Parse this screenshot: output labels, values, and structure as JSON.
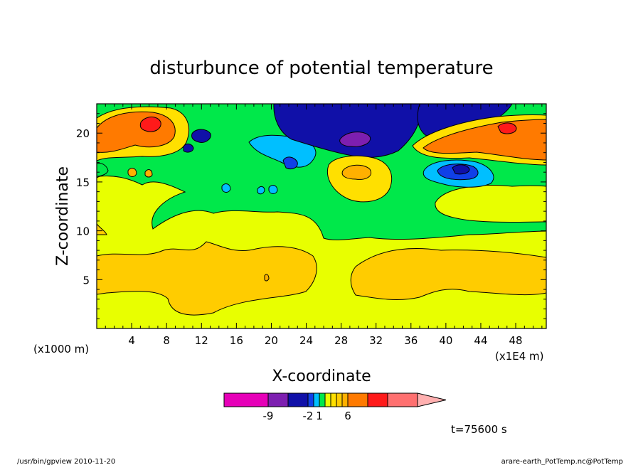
{
  "chart_data": {
    "type": "heatmap",
    "title": "disturbunce of potential temperature",
    "xlabel": "X-coordinate",
    "ylabel": "Z-coordinate",
    "x_unit": "(x1E4 m)",
    "y_unit": "(x1000 m)",
    "x_ticks": [
      4,
      8,
      12,
      16,
      20,
      24,
      28,
      32,
      36,
      40,
      44,
      48
    ],
    "y_ticks": [
      5,
      10,
      15,
      20
    ],
    "xlim": [
      0,
      51.5
    ],
    "ylim": [
      0,
      23
    ],
    "colorbar": {
      "labels": [
        "-9",
        "-2",
        "1",
        "6"
      ],
      "colors": [
        "#e600b8",
        "#7d1fb0",
        "#1010a8",
        "#1040e8",
        "#00bfff",
        "#00e84a",
        "#e8ff00",
        "#ffe000",
        "#ffcc00",
        "#ffb000",
        "#ff7a00",
        "#ff1a1a",
        "#ff7070",
        "#ffb0b0"
      ]
    },
    "time_label": "t=75600 s",
    "field_regions": [
      {
        "name": "upper-left orange",
        "x": [
          0,
          11
        ],
        "z": [
          17,
          22
        ],
        "level": 4
      },
      {
        "name": "upper-left warm core",
        "x": [
          4,
          8
        ],
        "z": [
          19.5,
          21.5
        ],
        "level": 6
      },
      {
        "name": "upper-center blue",
        "x": [
          20,
          37
        ],
        "z": [
          18,
          22.5
        ],
        "level": -6
      },
      {
        "name": "upper-center purple core",
        "x": [
          27,
          32
        ],
        "z": [
          19,
          20.5
        ],
        "level": -9
      },
      {
        "name": "upper-right orange",
        "x": [
          37,
          51.5
        ],
        "z": [
          17.5,
          22
        ],
        "level": 4
      },
      {
        "name": "right blue",
        "x": [
          37,
          45
        ],
        "z": [
          15.5,
          18
        ],
        "level": -4
      },
      {
        "name": "center orange",
        "x": [
          27,
          33
        ],
        "z": [
          14,
          17
        ],
        "level": 3
      },
      {
        "name": "middle green",
        "x": [
          6,
          40
        ],
        "z": [
          9,
          18
        ],
        "level": 0
      },
      {
        "name": "lower-left orange",
        "x": [
          0,
          25
        ],
        "z": [
          1,
          8
        ],
        "level": 2
      },
      {
        "name": "lower-right orange",
        "x": [
          29,
          51.5
        ],
        "z": [
          3,
          8
        ],
        "level": 2
      }
    ]
  },
  "footer": {
    "left": "/usr/bin/gpview   2010-11-20",
    "right": "arare-earth_PotTemp.nc@PotTemp"
  }
}
